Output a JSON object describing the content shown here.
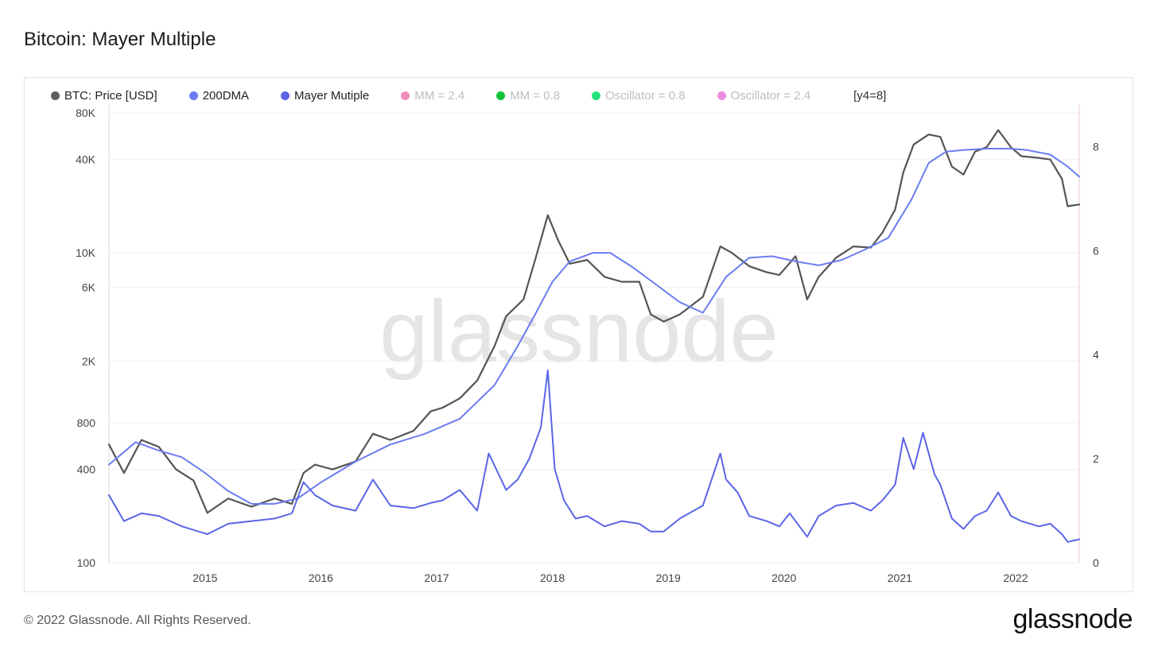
{
  "title": "Bitcoin: Mayer Multiple",
  "footer": "© 2022 Glassnode. All Rights Reserved.",
  "brand": "glassnode",
  "watermark": "glassnode",
  "legend": [
    {
      "label": "BTC: Price [USD]",
      "color": "#5e5e5e",
      "muted": false
    },
    {
      "label": "200DMA",
      "color": "#6b7cf0",
      "muted": false
    },
    {
      "label": "Mayer Mutiple",
      "color": "#5965e6",
      "muted": false
    },
    {
      "label": "MM = 2.4",
      "color": "#f28cc0",
      "muted": true
    },
    {
      "label": "MM = 0.8",
      "color": "#10c23a",
      "muted": true
    },
    {
      "label": "Oscillator = 0.8",
      "color": "#22e37a",
      "muted": true
    },
    {
      "label": "Oscillator = 2.4",
      "color": "#e98ee0",
      "muted": true
    },
    {
      "label": "[y4=8]",
      "color": "",
      "muted": false,
      "nodot": true
    }
  ],
  "chart_data": {
    "type": "line",
    "title": "Bitcoin: Mayer Multiple",
    "x_axis": {
      "ticks": [
        "2015",
        "2016",
        "2017",
        "2018",
        "2019",
        "2020",
        "2021",
        "2022"
      ],
      "range": [
        2014.17,
        2022.55
      ]
    },
    "y_left": {
      "scale": "log",
      "range": [
        100,
        90000
      ],
      "ticks": [
        "80K",
        "40K",
        "10K",
        "6K",
        "2K",
        "800",
        "400",
        "100"
      ],
      "tick_values": [
        80000,
        40000,
        10000,
        6000,
        2000,
        800,
        400,
        100
      ]
    },
    "y_right": {
      "scale": "linear",
      "range": [
        0,
        8.8
      ],
      "ticks": [
        "8",
        "6",
        "4",
        "2",
        "0"
      ],
      "tick_values": [
        8,
        6,
        4,
        2,
        0
      ]
    },
    "series": [
      {
        "name": "BTC: Price [USD]",
        "axis": "left",
        "color": "#555555",
        "x": [
          2014.17,
          2014.3,
          2014.45,
          2014.6,
          2014.75,
          2014.9,
          2015.02,
          2015.2,
          2015.4,
          2015.6,
          2015.75,
          2015.85,
          2015.95,
          2016.1,
          2016.3,
          2016.45,
          2016.6,
          2016.8,
          2016.95,
          2017.05,
          2017.2,
          2017.35,
          2017.5,
          2017.6,
          2017.75,
          2017.85,
          2017.96,
          2018.05,
          2018.15,
          2018.3,
          2018.45,
          2018.6,
          2018.75,
          2018.85,
          2018.96,
          2019.1,
          2019.3,
          2019.45,
          2019.55,
          2019.7,
          2019.85,
          2019.96,
          2020.1,
          2020.2,
          2020.3,
          2020.45,
          2020.6,
          2020.75,
          2020.85,
          2020.96,
          2021.03,
          2021.12,
          2021.25,
          2021.35,
          2021.45,
          2021.55,
          2021.65,
          2021.75,
          2021.85,
          2021.96,
          2022.05,
          2022.2,
          2022.3,
          2022.4,
          2022.45,
          2022.55
        ],
        "y": [
          580,
          380,
          620,
          560,
          400,
          340,
          210,
          260,
          230,
          260,
          240,
          380,
          430,
          400,
          450,
          680,
          620,
          710,
          950,
          1000,
          1150,
          1500,
          2500,
          3900,
          5000,
          9000,
          17500,
          12000,
          8500,
          9000,
          7000,
          6500,
          6500,
          4000,
          3600,
          4000,
          5200,
          11000,
          10000,
          8200,
          7500,
          7200,
          9500,
          5000,
          7000,
          9300,
          11000,
          10800,
          13500,
          19000,
          33000,
          50000,
          58000,
          56000,
          36000,
          32000,
          45000,
          48000,
          62000,
          48000,
          42000,
          41000,
          40000,
          30000,
          20000,
          20500
        ]
      },
      {
        "name": "200DMA",
        "axis": "left",
        "color": "#6b7cf0",
        "x": [
          2014.17,
          2014.4,
          2014.6,
          2014.8,
          2015.0,
          2015.2,
          2015.4,
          2015.6,
          2015.8,
          2016.0,
          2016.3,
          2016.6,
          2016.9,
          2017.2,
          2017.5,
          2017.7,
          2017.85,
          2018.0,
          2018.15,
          2018.35,
          2018.5,
          2018.7,
          2018.9,
          2019.1,
          2019.3,
          2019.5,
          2019.7,
          2019.9,
          2020.1,
          2020.3,
          2020.5,
          2020.7,
          2020.9,
          2021.1,
          2021.25,
          2021.4,
          2021.55,
          2021.75,
          2021.95,
          2022.1,
          2022.3,
          2022.45,
          2022.55
        ],
        "y": [
          430,
          600,
          530,
          480,
          380,
          290,
          240,
          240,
          260,
          330,
          450,
          580,
          680,
          850,
          1400,
          2500,
          4000,
          6500,
          8800,
          10000,
          10000,
          8000,
          6200,
          4800,
          4100,
          7000,
          9300,
          9500,
          8800,
          8300,
          9000,
          10500,
          12500,
          22000,
          38000,
          45000,
          46000,
          47000,
          47000,
          46000,
          43000,
          36000,
          31000
        ]
      },
      {
        "name": "Mayer Mutiple",
        "axis": "right",
        "color": "#5965e6",
        "x": [
          2014.17,
          2014.3,
          2014.45,
          2014.6,
          2014.8,
          2015.02,
          2015.2,
          2015.4,
          2015.6,
          2015.75,
          2015.85,
          2015.95,
          2016.1,
          2016.3,
          2016.45,
          2016.6,
          2016.8,
          2016.95,
          2017.05,
          2017.2,
          2017.35,
          2017.45,
          2017.6,
          2017.7,
          2017.8,
          2017.9,
          2017.96,
          2018.02,
          2018.1,
          2018.2,
          2018.3,
          2018.45,
          2018.6,
          2018.75,
          2018.85,
          2018.96,
          2019.1,
          2019.3,
          2019.45,
          2019.5,
          2019.6,
          2019.7,
          2019.85,
          2019.96,
          2020.05,
          2020.2,
          2020.3,
          2020.45,
          2020.6,
          2020.75,
          2020.85,
          2020.96,
          2021.03,
          2021.12,
          2021.2,
          2021.3,
          2021.35,
          2021.45,
          2021.55,
          2021.65,
          2021.75,
          2021.85,
          2021.96,
          2022.05,
          2022.2,
          2022.3,
          2022.4,
          2022.45,
          2022.55
        ],
        "y": [
          1.3,
          0.8,
          0.95,
          0.9,
          0.7,
          0.55,
          0.75,
          0.8,
          0.85,
          0.95,
          1.55,
          1.3,
          1.1,
          1.0,
          1.6,
          1.1,
          1.05,
          1.15,
          1.2,
          1.4,
          1.0,
          2.1,
          1.4,
          1.6,
          2.0,
          2.6,
          3.7,
          1.8,
          1.2,
          0.85,
          0.9,
          0.7,
          0.8,
          0.75,
          0.6,
          0.6,
          0.85,
          1.1,
          2.1,
          1.6,
          1.35,
          0.9,
          0.8,
          0.7,
          0.95,
          0.5,
          0.9,
          1.1,
          1.15,
          1.0,
          1.2,
          1.5,
          2.4,
          1.8,
          2.5,
          1.7,
          1.5,
          0.85,
          0.65,
          0.9,
          1.0,
          1.35,
          0.9,
          0.8,
          0.7,
          0.75,
          0.55,
          0.4,
          0.45
        ]
      }
    ]
  }
}
